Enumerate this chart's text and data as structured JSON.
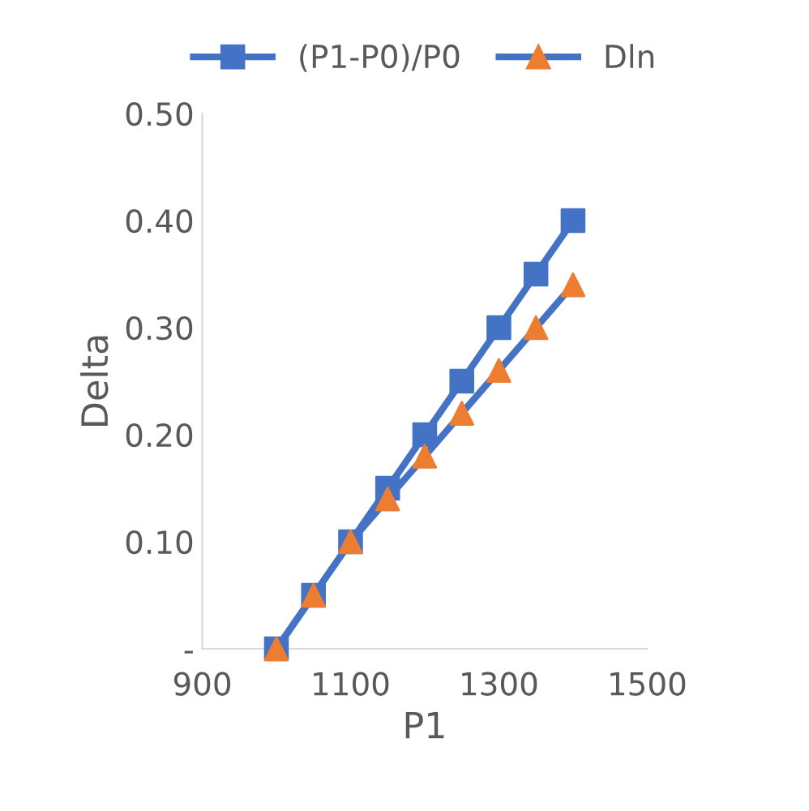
{
  "chart_data": {
    "type": "line",
    "xlabel": "P1",
    "ylabel": "Delta",
    "x": [
      1000,
      1050,
      1100,
      1150,
      1200,
      1250,
      1300,
      1350,
      1400
    ],
    "series": [
      {
        "name": "(P1-P0)/P0",
        "color": "#4472c4",
        "marker": "square",
        "values": [
          0,
          0.05,
          0.1,
          0.15,
          0.2,
          0.25,
          0.3,
          0.35,
          0.4
        ]
      },
      {
        "name": "Dln",
        "color": "#4472c4",
        "colors": [
          "#ed7d31",
          "#ed7d31",
          "#ed7d31",
          "#ed7d31",
          "#ed7d31",
          "#ed7d31",
          "#ed7d31",
          "#ed7d31",
          "#ed7d31"
        ],
        "marker": "triangle",
        "values": [
          0,
          0.05,
          0.1,
          0.14,
          0.18,
          0.22,
          0.26,
          0.3,
          0.34
        ]
      }
    ],
    "xlim": [
      900,
      1500
    ],
    "xticks": [
      900,
      1100,
      1300,
      1500
    ],
    "ylim": [
      0,
      0.5
    ],
    "yticks": [
      {
        "value": 0,
        "label": "-"
      },
      {
        "value": 0.1,
        "label": "0.10"
      },
      {
        "value": 0.2,
        "label": "0.20"
      },
      {
        "value": 0.3,
        "label": "0.30"
      },
      {
        "value": 0.4,
        "label": "0.40"
      },
      {
        "value": 0.5,
        "label": "0.50"
      }
    ],
    "grid": false,
    "legend": "top",
    "line_style": "solid"
  }
}
